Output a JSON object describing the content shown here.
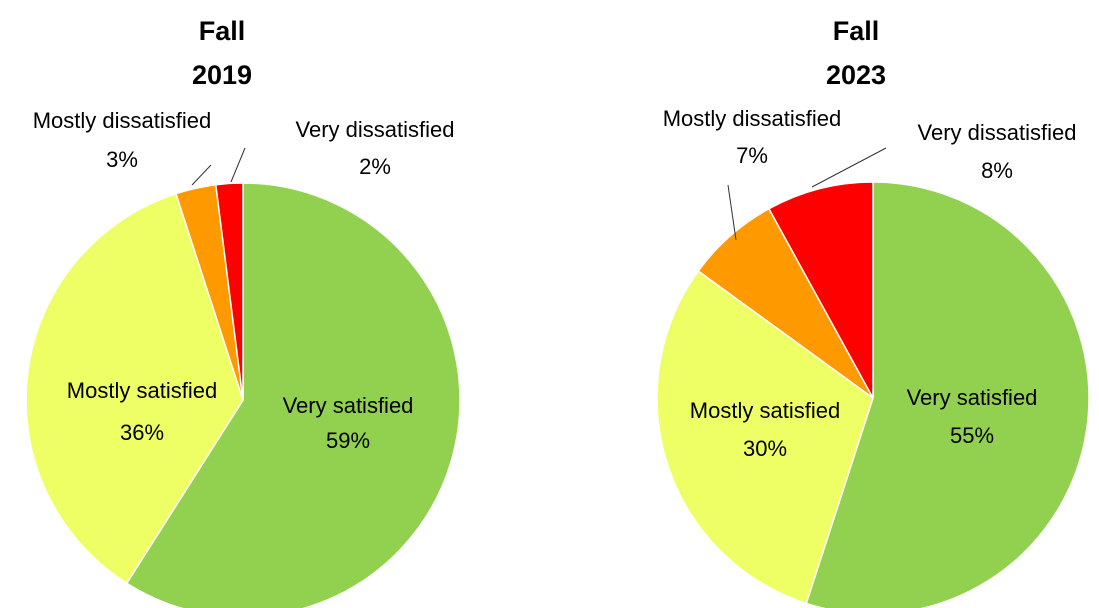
{
  "chart_data": [
    {
      "type": "pie",
      "title": "Fall 2019",
      "title_lines": [
        "Fall",
        "2019"
      ],
      "slices": [
        {
          "label": "Very satisfied",
          "value": 59,
          "value_text": "59%",
          "color": "#92d050"
        },
        {
          "label": "Mostly satisfied",
          "value": 36,
          "value_text": "36%",
          "color": "#eeff66"
        },
        {
          "label": "Mostly dissatisfied",
          "value": 3,
          "value_text": "3%",
          "color": "#ff9900"
        },
        {
          "label": "Very dissatisfied",
          "value": 2,
          "value_text": "2%",
          "color": "#ff0000"
        }
      ]
    },
    {
      "type": "pie",
      "title": "Fall 2023",
      "title_lines": [
        "Fall",
        "2023"
      ],
      "slices": [
        {
          "label": "Very satisfied",
          "value": 55,
          "value_text": "55%",
          "color": "#92d050"
        },
        {
          "label": "Mostly satisfied",
          "value": 30,
          "value_text": "30%",
          "color": "#eeff66"
        },
        {
          "label": "Mostly dissatisfied",
          "value": 7,
          "value_text": "7%",
          "color": "#ff9900"
        },
        {
          "label": "Very dissatisfied",
          "value": 8,
          "value_text": "8%",
          "color": "#ff0000"
        }
      ]
    }
  ]
}
